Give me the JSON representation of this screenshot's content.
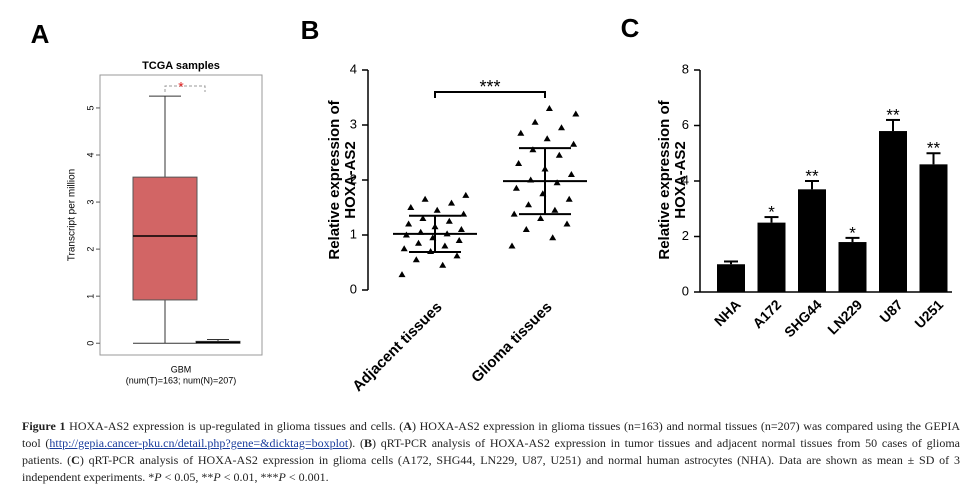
{
  "panel_labels": [
    "A",
    "B",
    "C"
  ],
  "chart_data": [
    {
      "type": "box",
      "title": "TCGA samples",
      "ylabel": "Transcript per million",
      "xlabel": "GBM",
      "xlabel_note": "(num(T)=163; num(N)=207)",
      "significance": "*",
      "significance_color": "#e02020",
      "ylim": [
        -0.25,
        5.7
      ],
      "yticks": [
        0,
        1,
        2,
        3,
        4,
        5
      ],
      "boxes": [
        {
          "color": "#d26565",
          "whislo": 0,
          "q1": 0.92,
          "med": 2.28,
          "q3": 3.53,
          "whishi": 5.25
        },
        {
          "color": "#9e9e9e",
          "whislo": 0,
          "q1": 0,
          "med": 0.02,
          "q3": 0.04,
          "whishi": 0.08
        }
      ]
    },
    {
      "type": "scatter",
      "ylabel_lines": [
        "Relative expression of",
        "HOXA-AS2"
      ],
      "categories": [
        "Adjacent tissues",
        "Glioma tissues"
      ],
      "significance": "***",
      "ylim": [
        0,
        4
      ],
      "yticks": [
        0,
        1,
        2,
        3,
        4
      ],
      "groups": [
        {
          "values": [
            0.28,
            0.45,
            0.55,
            0.62,
            0.7,
            0.75,
            0.8,
            0.85,
            0.9,
            0.95,
            1.0,
            1.02,
            1.05,
            1.1,
            1.15,
            1.2,
            1.25,
            1.3,
            1.38,
            1.45,
            1.5,
            1.58,
            1.65,
            1.72
          ],
          "mean": 1.02,
          "sd": 0.33
        },
        {
          "values": [
            0.8,
            0.95,
            1.1,
            1.2,
            1.3,
            1.38,
            1.45,
            1.55,
            1.65,
            1.75,
            1.85,
            1.95,
            2.0,
            2.1,
            2.2,
            2.3,
            2.45,
            2.55,
            2.65,
            2.75,
            2.85,
            2.95,
            3.05,
            3.2,
            3.3
          ],
          "mean": 1.98,
          "sd": 0.6
        }
      ]
    },
    {
      "type": "bar",
      "ylabel_lines": [
        "Relative expression of",
        "HOXA-AS2"
      ],
      "categories": [
        "NHA",
        "A172",
        "SHG44",
        "LN229",
        "U87",
        "U251"
      ],
      "values": [
        1.0,
        2.5,
        3.7,
        1.8,
        5.8,
        4.6
      ],
      "errors": [
        0.1,
        0.2,
        0.3,
        0.15,
        0.4,
        0.4
      ],
      "significance": [
        null,
        "*",
        "**",
        "*",
        "**",
        "**"
      ],
      "color": "#000000",
      "ylim": [
        0,
        8
      ],
      "yticks": [
        0,
        2,
        4,
        6,
        8
      ]
    }
  ],
  "caption": {
    "segments": [
      "Figure 1",
      " HOXA-AS2 expression is up-regulated in glioma tissues and cells. (",
      "A",
      ") HOXA-AS2 expression in glioma tissues (n=163) and normal tissues (n=207) was compared using the GEPIA tool (",
      "http://gepia.cancer-pku.cn/detail.php?gene=&dicktag=boxplot",
      "). (",
      "B",
      ") qRT-PCR analysis of HOXA-AS2 expression in tumor tissues and adjacent normal tissues from 50 cases of glioma patients. (",
      "C",
      ") qRT-PCR analysis of HOXA-AS2 expression in glioma cells (A172, SHG44, LN229, U87, U251) and normal human astrocytes (NHA). Data are shown as mean ± SD of 3 independent experiments. *",
      "P",
      " < 0.05, **",
      "P",
      " < 0.01, ***",
      "P",
      " < 0.001."
    ]
  }
}
